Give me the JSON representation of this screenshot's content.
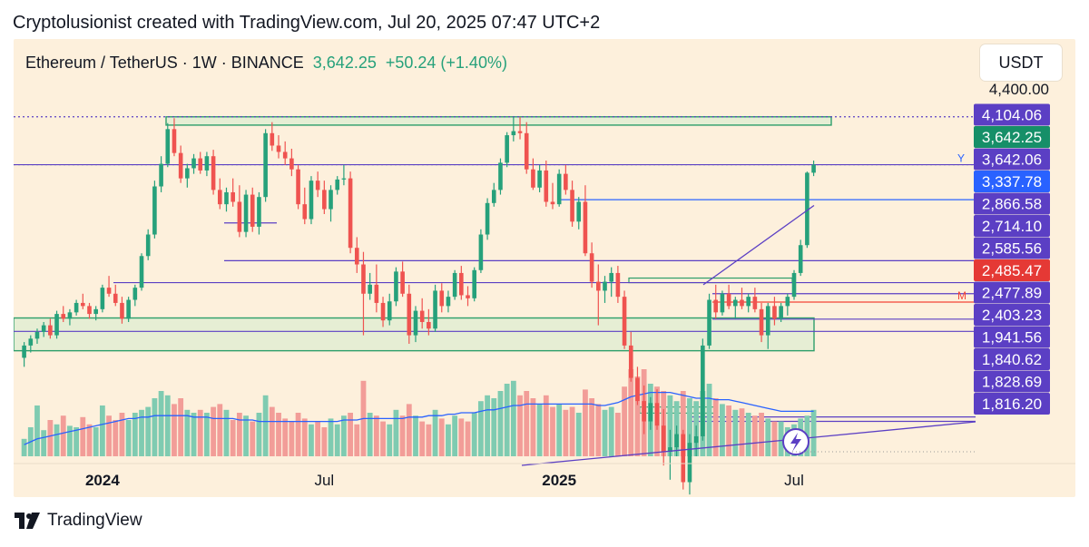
{
  "header": {
    "attribution": "Cryptolusionist created with TradingView.com, Jul 20, 2025 07:47 UTC+2"
  },
  "symbol": {
    "name": "Ethereum / TetherUS · 1W · BINANCE",
    "price": "3,642.25",
    "change": "+50.24 (+1.40%)"
  },
  "currency_label": "USDT",
  "footer": {
    "brand": "TradingView"
  },
  "colors": {
    "up": "#26a17b",
    "down": "#ef5350",
    "vol_up": "#7fcbb1",
    "vol_down": "#f29d98",
    "line_purple": "#5b3fc4",
    "line_blue": "#2962ff",
    "zone_green": "#2e9e6a",
    "red_line": "#f44336",
    "background": "#fdf0dc"
  },
  "chart_data": {
    "type": "candlestick",
    "title": "",
    "timeframe": "1W",
    "y_axis": {
      "scale": "log",
      "range": [
        1780,
        4400
      ],
      "top_label": "4,400.00"
    },
    "x_axis": {
      "tick_labels": [
        "2024",
        "Jul",
        "2025",
        "Jul"
      ]
    },
    "price_labels": [
      {
        "value": 4104.06,
        "text": "4,104.06",
        "style": "purple"
      },
      {
        "value": 3642.25,
        "text": "3,642.25",
        "style": "green"
      },
      {
        "value": 3642.06,
        "text": "3,642.06",
        "style": "purple"
      },
      {
        "value": 3337.78,
        "text": "3,337.78",
        "style": "blue"
      },
      {
        "value": 2866.58,
        "text": "2,866.58",
        "style": "purple"
      },
      {
        "value": 2714.1,
        "text": "2,714.10",
        "style": "purple"
      },
      {
        "value": 2585.56,
        "text": "2,585.56",
        "style": "purple"
      },
      {
        "value": 2485.47,
        "text": "2,485.47",
        "style": "red"
      },
      {
        "value": 2477.89,
        "text": "2,477.89",
        "style": "purple"
      },
      {
        "value": 2403.23,
        "text": "2,403.23",
        "style": "purple"
      },
      {
        "value": 1941.56,
        "text": "1,941.56",
        "style": "purple"
      },
      {
        "value": 1840.62,
        "text": "1,840.62",
        "style": "purple"
      },
      {
        "value": 1828.69,
        "text": "1,828.69",
        "style": "purple"
      },
      {
        "value": 1816.2,
        "text": "1,816.20",
        "style": "purple"
      }
    ],
    "line_markers": [
      "Y",
      "M"
    ],
    "candles": [
      [
        2250,
        2340,
        2200,
        2320
      ],
      [
        2320,
        2380,
        2280,
        2360
      ],
      [
        2360,
        2420,
        2330,
        2400
      ],
      [
        2400,
        2460,
        2370,
        2440
      ],
      [
        2440,
        2480,
        2360,
        2380
      ],
      [
        2380,
        2530,
        2360,
        2510
      ],
      [
        2510,
        2560,
        2460,
        2480
      ],
      [
        2480,
        2540,
        2440,
        2520
      ],
      [
        2520,
        2600,
        2500,
        2580
      ],
      [
        2580,
        2640,
        2540,
        2560
      ],
      [
        2560,
        2580,
        2480,
        2510
      ],
      [
        2510,
        2560,
        2470,
        2540
      ],
      [
        2540,
        2700,
        2520,
        2680
      ],
      [
        2680,
        2760,
        2620,
        2640
      ],
      [
        2640,
        2700,
        2560,
        2580
      ],
      [
        2580,
        2620,
        2450,
        2480
      ],
      [
        2480,
        2620,
        2460,
        2600
      ],
      [
        2600,
        2700,
        2560,
        2680
      ],
      [
        2680,
        2920,
        2660,
        2900
      ],
      [
        2900,
        3100,
        2870,
        3060
      ],
      [
        3060,
        3500,
        3030,
        3450
      ],
      [
        3450,
        3720,
        3400,
        3650
      ],
      [
        3650,
        4040,
        3620,
        3980
      ],
      [
        3980,
        4090,
        3720,
        3750
      ],
      [
        3750,
        3820,
        3480,
        3520
      ],
      [
        3520,
        3650,
        3440,
        3610
      ],
      [
        3610,
        3740,
        3560,
        3700
      ],
      [
        3700,
        3760,
        3560,
        3590
      ],
      [
        3590,
        3760,
        3540,
        3720
      ],
      [
        3720,
        3780,
        3380,
        3420
      ],
      [
        3420,
        3520,
        3260,
        3300
      ],
      [
        3300,
        3440,
        3240,
        3400
      ],
      [
        3400,
        3520,
        3280,
        3320
      ],
      [
        3320,
        3460,
        3040,
        3080
      ],
      [
        3080,
        3420,
        3040,
        3380
      ],
      [
        3380,
        3440,
        3080,
        3120
      ],
      [
        3120,
        3400,
        3060,
        3360
      ],
      [
        3360,
        3980,
        3320,
        3940
      ],
      [
        3940,
        4050,
        3770,
        3820
      ],
      [
        3820,
        3920,
        3700,
        3760
      ],
      [
        3760,
        3860,
        3640,
        3700
      ],
      [
        3700,
        3790,
        3540,
        3600
      ],
      [
        3600,
        3640,
        3260,
        3300
      ],
      [
        3300,
        3440,
        3140,
        3180
      ],
      [
        3180,
        3540,
        3140,
        3500
      ],
      [
        3500,
        3580,
        3360,
        3420
      ],
      [
        3420,
        3500,
        3220,
        3260
      ],
      [
        3260,
        3460,
        3160,
        3420
      ],
      [
        3420,
        3540,
        3380,
        3510
      ],
      [
        3510,
        3640,
        3460,
        3520
      ],
      [
        3520,
        3580,
        2920,
        2960
      ],
      [
        2960,
        3040,
        2780,
        2840
      ],
      [
        2840,
        2930,
        2380,
        2640
      ],
      [
        2640,
        2780,
        2600,
        2700
      ],
      [
        2700,
        2840,
        2520,
        2580
      ],
      [
        2580,
        2620,
        2430,
        2470
      ],
      [
        2470,
        2640,
        2440,
        2590
      ],
      [
        2590,
        2820,
        2560,
        2790
      ],
      [
        2790,
        2860,
        2620,
        2640
      ],
      [
        2640,
        2700,
        2330,
        2380
      ],
      [
        2380,
        2560,
        2340,
        2530
      ],
      [
        2530,
        2610,
        2420,
        2460
      ],
      [
        2460,
        2540,
        2380,
        2420
      ],
      [
        2420,
        2700,
        2400,
        2660
      ],
      [
        2660,
        2710,
        2520,
        2560
      ],
      [
        2560,
        2660,
        2520,
        2620
      ],
      [
        2620,
        2800,
        2600,
        2780
      ],
      [
        2780,
        2830,
        2600,
        2630
      ],
      [
        2630,
        2690,
        2560,
        2610
      ],
      [
        2610,
        2820,
        2590,
        2800
      ],
      [
        2800,
        3100,
        2780,
        3060
      ],
      [
        3060,
        3350,
        3020,
        3310
      ],
      [
        3310,
        3480,
        3280,
        3420
      ],
      [
        3420,
        3700,
        3380,
        3660
      ],
      [
        3660,
        3950,
        3620,
        3920
      ],
      [
        3920,
        4100,
        3860,
        3960
      ],
      [
        3960,
        4100,
        3880,
        3940
      ],
      [
        3940,
        4050,
        3560,
        3600
      ],
      [
        3600,
        3700,
        3420,
        3440
      ],
      [
        3440,
        3640,
        3400,
        3590
      ],
      [
        3590,
        3680,
        3280,
        3320
      ],
      [
        3320,
        3480,
        3260,
        3300
      ],
      [
        3300,
        3600,
        3280,
        3560
      ],
      [
        3560,
        3640,
        3380,
        3420
      ],
      [
        3420,
        3500,
        3120,
        3160
      ],
      [
        3160,
        3360,
        3100,
        3320
      ],
      [
        3320,
        3460,
        2900,
        2920
      ],
      [
        2920,
        3000,
        2680,
        2720
      ],
      [
        2720,
        2840,
        2440,
        2660
      ],
      [
        2660,
        2760,
        2580,
        2720
      ],
      [
        2720,
        2820,
        2620,
        2780
      ],
      [
        2780,
        2830,
        2580,
        2620
      ],
      [
        2620,
        2660,
        2300,
        2320
      ],
      [
        2320,
        2400,
        2120,
        2140
      ],
      [
        2140,
        2200,
        2000,
        2020
      ],
      [
        2020,
        2100,
        1860,
        1920
      ],
      [
        1920,
        2040,
        1880,
        2010
      ],
      [
        2010,
        2080,
        1880,
        1900
      ],
      [
        1900,
        1980,
        1720,
        1780
      ],
      [
        1780,
        1880,
        1660,
        1800
      ],
      [
        1800,
        1900,
        1760,
        1860
      ],
      [
        1860,
        1880,
        1620,
        1650
      ],
      [
        1650,
        1860,
        1600,
        1820
      ],
      [
        1820,
        1900,
        1760,
        1850
      ],
      [
        1850,
        2360,
        1830,
        2320
      ],
      [
        2320,
        2640,
        2300,
        2600
      ],
      [
        2600,
        2700,
        2480,
        2520
      ],
      [
        2520,
        2660,
        2500,
        2640
      ],
      [
        2640,
        2700,
        2540,
        2560
      ],
      [
        2560,
        2620,
        2480,
        2600
      ],
      [
        2600,
        2680,
        2540,
        2560
      ],
      [
        2560,
        2640,
        2520,
        2620
      ],
      [
        2620,
        2680,
        2520,
        2540
      ],
      [
        2540,
        2580,
        2340,
        2380
      ],
      [
        2380,
        2580,
        2300,
        2560
      ],
      [
        2560,
        2620,
        2440,
        2480
      ],
      [
        2480,
        2580,
        2460,
        2560
      ],
      [
        2560,
        2640,
        2500,
        2620
      ],
      [
        2620,
        2800,
        2600,
        2780
      ],
      [
        2780,
        3020,
        2760,
        2980
      ],
      [
        2980,
        3580,
        2960,
        3570
      ],
      [
        3570,
        3680,
        3540,
        3642.25
      ]
    ],
    "volume_relative": [
      0.12,
      0.2,
      0.35,
      0.18,
      0.25,
      0.22,
      0.28,
      0.21,
      0.2,
      0.27,
      0.22,
      0.2,
      0.35,
      0.28,
      0.25,
      0.3,
      0.25,
      0.3,
      0.32,
      0.34,
      0.4,
      0.45,
      0.42,
      0.36,
      0.4,
      0.32,
      0.3,
      0.32,
      0.3,
      0.34,
      0.36,
      0.32,
      0.25,
      0.3,
      0.28,
      0.24,
      0.3,
      0.42,
      0.34,
      0.3,
      0.26,
      0.24,
      0.3,
      0.26,
      0.22,
      0.24,
      0.2,
      0.26,
      0.22,
      0.28,
      0.3,
      0.22,
      0.52,
      0.3,
      0.28,
      0.24,
      0.22,
      0.32,
      0.28,
      0.36,
      0.28,
      0.24,
      0.22,
      0.32,
      0.26,
      0.22,
      0.28,
      0.26,
      0.24,
      0.3,
      0.38,
      0.42,
      0.4,
      0.45,
      0.5,
      0.52,
      0.42,
      0.45,
      0.4,
      0.36,
      0.42,
      0.34,
      0.36,
      0.32,
      0.34,
      0.3,
      0.46,
      0.4,
      0.36,
      0.32,
      0.34,
      0.3,
      0.48,
      0.6,
      0.55,
      0.6,
      0.5,
      0.48,
      0.45,
      0.42,
      0.38,
      0.45,
      0.4,
      0.38,
      0.45,
      0.5,
      0.4,
      0.36,
      0.35,
      0.32,
      0.33,
      0.3,
      0.28,
      0.3,
      0.26,
      0.24,
      0.24,
      0.2,
      0.22,
      0.26,
      0.28,
      0.32
    ],
    "volume_ma_relative": [
      0.08,
      0.1,
      0.12,
      0.13,
      0.14,
      0.15,
      0.16,
      0.17,
      0.18,
      0.19,
      0.2,
      0.21,
      0.22,
      0.23,
      0.24,
      0.25,
      0.26,
      0.26,
      0.27,
      0.27,
      0.28,
      0.28,
      0.28,
      0.28,
      0.28,
      0.28,
      0.27,
      0.27,
      0.27,
      0.26,
      0.26,
      0.26,
      0.26,
      0.25,
      0.25,
      0.25,
      0.24,
      0.24,
      0.24,
      0.24,
      0.24,
      0.24,
      0.24,
      0.24,
      0.24,
      0.24,
      0.24,
      0.24,
      0.24,
      0.25,
      0.25,
      0.25,
      0.26,
      0.26,
      0.26,
      0.26,
      0.26,
      0.26,
      0.26,
      0.27,
      0.27,
      0.27,
      0.28,
      0.28,
      0.28,
      0.29,
      0.29,
      0.3,
      0.3,
      0.3,
      0.31,
      0.32,
      0.32,
      0.33,
      0.34,
      0.35,
      0.35,
      0.36,
      0.36,
      0.36,
      0.36,
      0.36,
      0.36,
      0.36,
      0.36,
      0.36,
      0.36,
      0.36,
      0.35,
      0.35,
      0.36,
      0.37,
      0.39,
      0.41,
      0.42,
      0.43,
      0.44,
      0.44,
      0.44,
      0.44,
      0.43,
      0.42,
      0.41,
      0.4,
      0.4,
      0.4,
      0.39,
      0.39,
      0.39,
      0.38,
      0.37,
      0.36,
      0.35,
      0.34,
      0.33,
      0.32,
      0.31,
      0.31,
      0.31,
      0.31,
      0.31,
      0.31
    ]
  }
}
